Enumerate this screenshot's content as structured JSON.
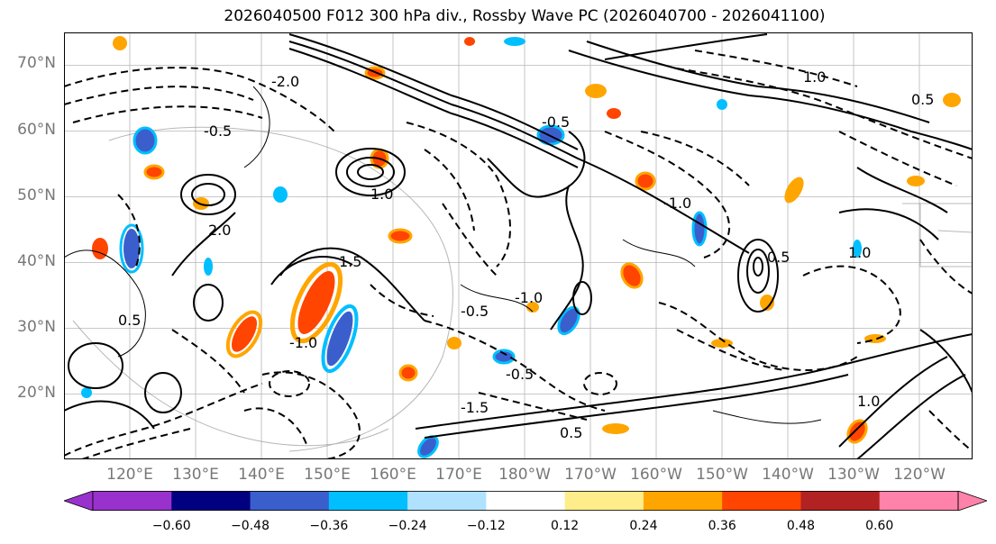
{
  "title": "2026040500 F012 300 hPa div., Rossby Wave PC (2026040700 - 2026041100)",
  "map": {
    "projection": "PlateCarree",
    "lat_range": [
      10,
      75
    ],
    "lon_range": [
      110,
      248
    ],
    "lat_labels": [
      "70°N",
      "60°N",
      "50°N",
      "40°N",
      "30°N",
      "20°N"
    ],
    "lon_labels": [
      "120°E",
      "130°E",
      "140°E",
      "150°E",
      "160°E",
      "170°E",
      "180°W",
      "170°W",
      "160°W",
      "150°W",
      "140°W",
      "130°W",
      "120°W"
    ],
    "contour_labels": [
      "-0.5",
      "-1.0",
      "-1.5",
      "-2.0",
      "0.5",
      "1.0",
      "1.5",
      "2.0"
    ],
    "fill_field": "300 hPa divergence",
    "line_field": "Rossby Wave PC"
  },
  "colorbar": {
    "levels": [
      -0.72,
      -0.6,
      -0.48,
      -0.36,
      -0.24,
      -0.12,
      0.12,
      0.24,
      0.36,
      0.48,
      0.6,
      0.72
    ],
    "tick_labels": [
      "−0.60",
      "−0.48",
      "−0.36",
      "−0.24",
      "−0.12",
      "0.12",
      "0.24",
      "0.36",
      "0.48",
      "0.60"
    ],
    "colors": [
      "#9932cc",
      "#000080",
      "#3a5fcd",
      "#00bfff",
      "#b0e2ff",
      "#ffffff",
      "#ffec8b",
      "#ffa500",
      "#ff4500",
      "#b22222",
      "#ff82ab"
    ],
    "extend_low": "#9932cc",
    "extend_high": "#ff82ab"
  }
}
